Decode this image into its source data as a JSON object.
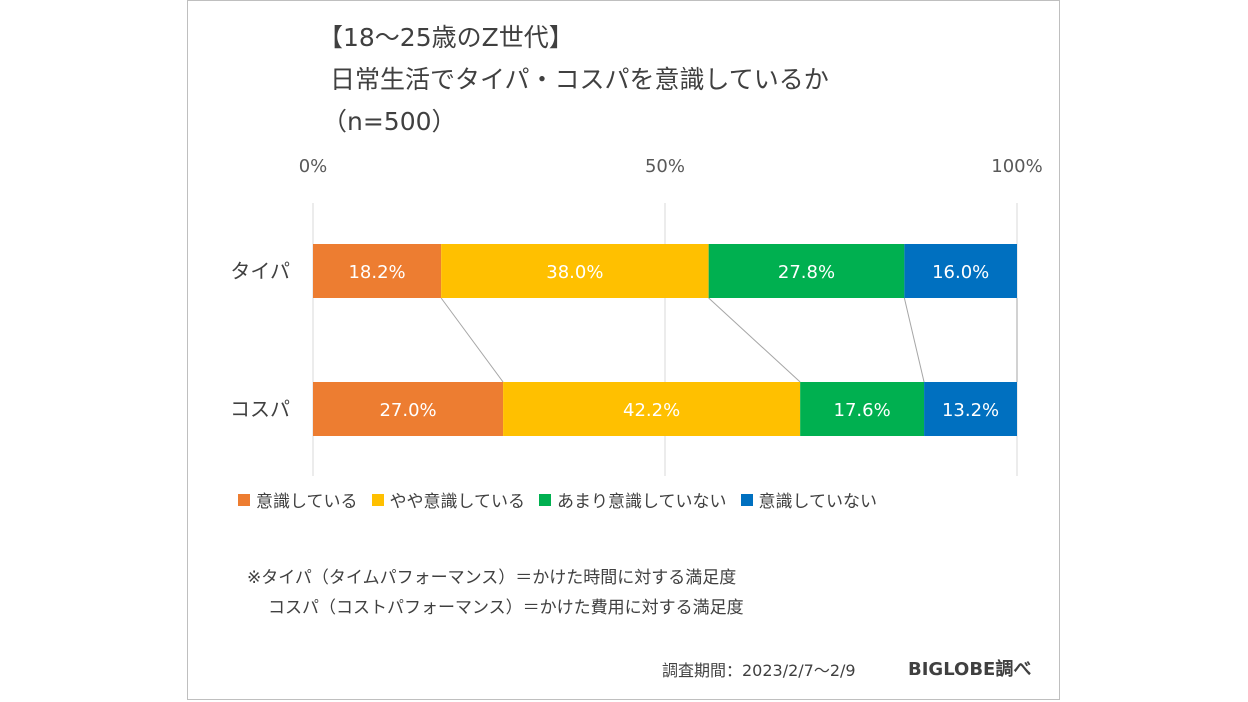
{
  "title_lines": [
    "【18～25歳のZ世代】",
    "日常生活でタイパ・コスパを意識しているか",
    "（n=500）"
  ],
  "chart_data": {
    "type": "bar",
    "orientation": "horizontal",
    "stacked": true,
    "percent": true,
    "categories": [
      "タイパ",
      "コスパ"
    ],
    "series": [
      {
        "name": "意識している",
        "color": "#ED7D31",
        "values": [
          18.2,
          27.0
        ],
        "labels": [
          "18.2%",
          "27.0%"
        ]
      },
      {
        "name": "やや意識している",
        "color": "#FFC000",
        "values": [
          38.0,
          42.2
        ],
        "labels": [
          "38.0%",
          "42.2%"
        ]
      },
      {
        "name": "あまり意識していない",
        "color": "#00B050",
        "values": [
          27.8,
          17.6
        ],
        "labels": [
          "27.8%",
          "17.6%"
        ]
      },
      {
        "name": "意識していない",
        "color": "#0070C0",
        "values": [
          16.0,
          13.2
        ],
        "labels": [
          "16.0%",
          "13.2%"
        ]
      }
    ],
    "xticks": [
      "0%",
      "50%",
      "100%"
    ],
    "xlim": [
      0,
      100
    ],
    "legend_position": "bottom",
    "grid": true
  },
  "notes": [
    "※タイパ（タイムパフォーマンス）＝かけた時間に対する満足度",
    "コスパ（コストパフォーマンス）＝かけた費用に対する満足度"
  ],
  "source": "調査期間：2023/2/7～2/9",
  "brand": "BIGLOBE調べ"
}
